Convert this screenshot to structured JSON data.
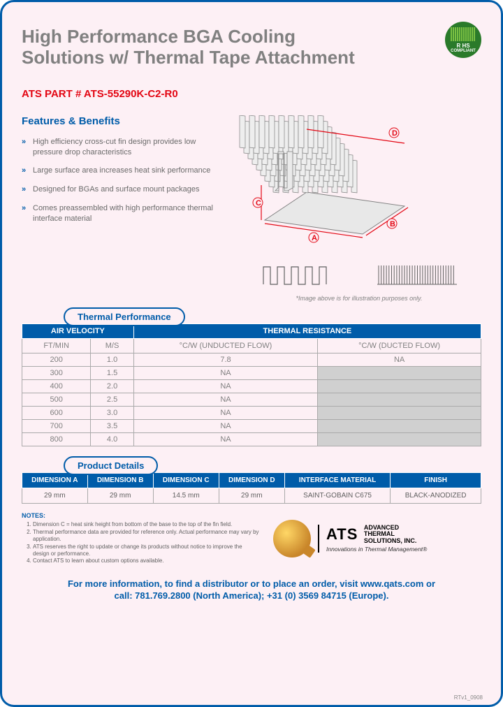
{
  "title_line1": "High Performance BGA Cooling",
  "title_line2": "Solutions w/ Thermal Tape Attachment",
  "part_label": "ATS PART # ATS-55290K-C2-R0",
  "rohs": {
    "top": "R HS",
    "bottom": "COMPLIANT"
  },
  "features_heading": "Features & Benefits",
  "features": [
    "High efficiency cross-cut fin design provides low pressure drop characteristics",
    "Large surface area increases heat sink performance",
    "Designed for BGAs and surface mount packages",
    "Comes preassembled with high performance thermal interface material"
  ],
  "diagram": {
    "labels": {
      "A": "A",
      "B": "B",
      "C": "C",
      "D": "D"
    },
    "colors": {
      "line": "#e30613",
      "stroke": "#808080"
    }
  },
  "caption": "*Image above is for illustration purposes only.",
  "thermal": {
    "tab": "Thermal Performance",
    "h1": "AIR VELOCITY",
    "h2": "THERMAL RESISTANCE",
    "sub": [
      "FT/MIN",
      "M/S",
      "°C/W (UNDUCTED FLOW)",
      "°C/W (DUCTED FLOW)"
    ],
    "rows": [
      {
        "c": [
          "200",
          "1.0",
          "7.8",
          "NA"
        ],
        "grey": false
      },
      {
        "c": [
          "300",
          "1.5",
          "NA",
          ""
        ],
        "grey": true
      },
      {
        "c": [
          "400",
          "2.0",
          "NA",
          ""
        ],
        "grey": true
      },
      {
        "c": [
          "500",
          "2.5",
          "NA",
          ""
        ],
        "grey": true
      },
      {
        "c": [
          "600",
          "3.0",
          "NA",
          ""
        ],
        "grey": true
      },
      {
        "c": [
          "700",
          "3.5",
          "NA",
          ""
        ],
        "grey": true
      },
      {
        "c": [
          "800",
          "4.0",
          "NA",
          ""
        ],
        "grey": true
      }
    ]
  },
  "details": {
    "tab": "Product Details",
    "headers": [
      "DIMENSION A",
      "DIMENSION B",
      "DIMENSION C",
      "DIMENSION D",
      "INTERFACE MATERIAL",
      "FINISH"
    ],
    "row": [
      "29 mm",
      "29 mm",
      "14.5 mm",
      "29 mm",
      "SAINT-GOBAIN C675",
      "BLACK-ANODIZED"
    ]
  },
  "notes": {
    "heading": "NOTES:",
    "items": [
      "Dimension C = heat sink height from bottom of the base to the top of the fin field.",
      "Thermal performance data are provided for reference only. Actual performance may vary by application.",
      "ATS reserves the right to update or change its products without notice to improve the design or performance.",
      "Contact ATS to learn about custom options available."
    ]
  },
  "logo": {
    "ats": "ATS",
    "l1": "ADVANCED",
    "l2": "THERMAL",
    "l3": "SOLUTIONS, INC.",
    "tag": "Innovations in Thermal Management®"
  },
  "footer_l1": "For more information, to find a distributor or to place an order, visit www.qats.com or",
  "footer_l2": "call: 781.769.2800 (North America); +31 (0) 3569 84715 (Europe).",
  "rev": "RTv1_0908"
}
